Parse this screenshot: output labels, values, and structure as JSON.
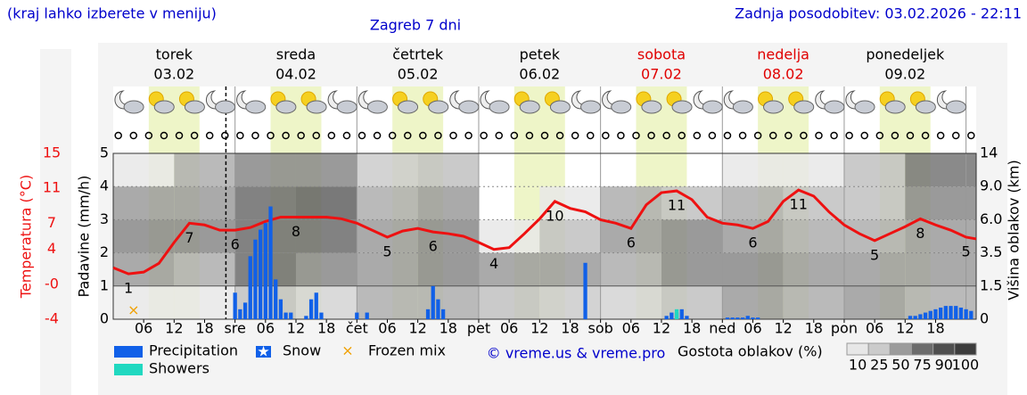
{
  "header": {
    "note": "(kraj lahko izberete v meniju)",
    "updated": "Zadnja posodobitev: 03.02.2026 - 22:11"
  },
  "chart_data": {
    "type": "meteogram",
    "title": "Zagreb 7 dni",
    "days": [
      {
        "name": "torek",
        "date": "03.02",
        "color": "#000000"
      },
      {
        "name": "sreda",
        "date": "04.02",
        "color": "#000000"
      },
      {
        "name": "četrtek",
        "date": "05.02",
        "color": "#000000"
      },
      {
        "name": "petek",
        "date": "06.02",
        "color": "#000000"
      },
      {
        "name": "sobota",
        "date": "07.02",
        "color": "#e00000"
      },
      {
        "name": "nedelja",
        "date": "08.02",
        "color": "#e00000"
      },
      {
        "name": "ponedeljek",
        "date": "09.02",
        "color": "#000000"
      }
    ],
    "xlim": [
      0,
      170
    ],
    "xticks": [
      {
        "value": 6,
        "label": "06"
      },
      12,
      18,
      {
        "value": 24,
        "label": "sre"
      },
      {
        "value": 30,
        "label": "06"
      },
      {
        "value": 36,
        "label": "12"
      },
      {
        "value": 42,
        "label": "18"
      },
      {
        "value": 48,
        "label": "čet"
      },
      {
        "value": 54,
        "label": "06"
      },
      {
        "value": 60,
        "label": "12"
      },
      {
        "value": 66,
        "label": "18"
      },
      {
        "value": 72,
        "label": "pet"
      },
      {
        "value": 78,
        "label": "06"
      },
      {
        "value": 84,
        "label": "12"
      },
      {
        "value": 90,
        "label": "18"
      },
      {
        "value": 96,
        "label": "sob"
      },
      {
        "value": 102,
        "label": "06"
      },
      {
        "value": 108,
        "label": "12"
      },
      {
        "value": 114,
        "label": "18"
      },
      {
        "value": 120,
        "label": "ned"
      },
      {
        "value": 126,
        "label": "06"
      },
      {
        "value": 132,
        "label": "12"
      },
      {
        "value": 138,
        "label": "18"
      },
      {
        "value": 144,
        "label": "pon"
      },
      {
        "value": 150,
        "label": "06"
      },
      {
        "value": 156,
        "label": "12"
      },
      {
        "value": 162,
        "label": "18"
      }
    ],
    "ylabel": "Padavine (mm/h)",
    "ylim": [
      0,
      5
    ],
    "yticks": [
      0,
      1,
      2,
      3,
      4,
      5
    ],
    "y2label": "Temperatura (°C)",
    "y2lim": [
      -4,
      15
    ],
    "y2ticks": [
      -4,
      {
        "value": 0,
        "label": "-0"
      },
      4,
      7,
      11,
      15
    ],
    "y3label": "Višina oblakov (km)",
    "y3ticks": [
      0,
      1.5,
      3.5,
      {
        "value": 6,
        "label": "6.0"
      },
      {
        "value": 9,
        "label": "9.0"
      },
      14
    ],
    "grid": true,
    "series": [
      {
        "color": "#ee1111",
        "axis": "y2",
        "x": [
          0,
          3,
          6,
          9,
          12,
          15,
          18,
          21,
          24,
          27,
          30,
          33,
          36,
          39,
          42,
          45,
          48,
          51,
          54,
          57,
          60,
          63,
          66,
          69,
          72,
          75,
          78,
          81,
          84,
          87,
          90,
          93,
          96,
          99,
          102,
          105,
          108,
          111,
          114,
          117,
          120,
          123,
          126,
          129,
          132,
          135,
          138,
          141,
          144,
          147,
          150,
          153,
          156,
          159,
          162,
          165,
          168,
          170
        ],
        "values": [
          1.9,
          1.2,
          1.4,
          2.4,
          4.8,
          7.0,
          6.8,
          6.2,
          6.2,
          6.5,
          7.2,
          7.7,
          7.7,
          7.7,
          7.7,
          7.5,
          7.0,
          6.2,
          5.4,
          6.1,
          6.4,
          6.0,
          5.8,
          5.5,
          4.8,
          4.0,
          4.2,
          5.8,
          7.5,
          9.5,
          8.7,
          8.3,
          7.4,
          7.0,
          6.4,
          9.1,
          10.5,
          10.7,
          9.7,
          7.7,
          7.0,
          6.8,
          6.4,
          7.2,
          9.5,
          10.8,
          10.1,
          8.3,
          6.8,
          5.8,
          5.0,
          5.8,
          6.6,
          7.5,
          6.8,
          6.2,
          5.4,
          5.2
        ],
        "value_labels": [
          null,
          "1",
          null,
          null,
          null,
          "7",
          null,
          null,
          "6",
          null,
          null,
          null,
          "8",
          null,
          null,
          null,
          null,
          null,
          "5",
          null,
          null,
          "6",
          null,
          null,
          null,
          "4",
          null,
          null,
          null,
          "10",
          null,
          null,
          null,
          null,
          "6",
          null,
          null,
          "11",
          null,
          null,
          null,
          null,
          "6",
          null,
          null,
          "11",
          null,
          null,
          null,
          null,
          "5",
          null,
          null,
          "8",
          null,
          null,
          "5",
          null
        ]
      },
      {
        "name": "Precipitation",
        "color": "#1060e8",
        "x": [
          24,
          25,
          26,
          27,
          28,
          29,
          30,
          31,
          32,
          33,
          34,
          35,
          38,
          39,
          40,
          41,
          48,
          50,
          62,
          63,
          64,
          65,
          93,
          109,
          110,
          111,
          112,
          113,
          121,
          122,
          123,
          124,
          125,
          126,
          127,
          157,
          158,
          159,
          160,
          161,
          162,
          163,
          164,
          165,
          166,
          167,
          168,
          169
        ],
        "values": [
          0.8,
          0.3,
          0.5,
          1.9,
          2.4,
          2.7,
          2.9,
          3.4,
          1.2,
          0.6,
          0.2,
          0.2,
          0.1,
          0.6,
          0.8,
          0.2,
          0.2,
          0.2,
          0.3,
          1.0,
          0.6,
          0.3,
          1.7,
          0.1,
          0.2,
          0.2,
          0.3,
          0.1,
          0.05,
          0.05,
          0.05,
          0.05,
          0.1,
          0.05,
          0.05,
          0.1,
          0.1,
          0.15,
          0.2,
          0.25,
          0.3,
          0.35,
          0.4,
          0.4,
          0.4,
          0.35,
          0.3,
          0.25
        ]
      },
      {
        "name": "Snow",
        "color": "#1060e8",
        "x": [],
        "values": []
      },
      {
        "name": "Frozen mix",
        "color": "#f0a000",
        "x": [
          4
        ],
        "values": [
          0.2
        ]
      },
      {
        "name": "Showers",
        "color": "#20d8c0",
        "x": [
          111
        ],
        "values": [
          0.3
        ]
      }
    ],
    "cloud_density": {
      "legend_title": "Gostota oblakov (%)",
      "legend_ticks": [
        10,
        25,
        50,
        75,
        90,
        100
      ],
      "x": [
        0,
        12,
        24,
        36,
        48,
        60,
        72,
        84,
        96,
        108,
        120,
        132,
        144,
        156
      ],
      "values": [
        [
          10,
          50,
          60,
          50,
          10
        ],
        [
          10,
          40,
          60,
          50,
          40
        ],
        [
          30,
          75,
          75,
          75,
          60
        ],
        [
          20,
          60,
          75,
          80,
          60
        ],
        [
          40,
          50,
          50,
          40,
          25
        ],
        [
          40,
          60,
          60,
          50,
          30
        ],
        [
          30,
          50,
          10,
          0,
          0
        ],
        [
          25,
          50,
          30,
          10,
          0
        ],
        [
          20,
          40,
          50,
          40,
          0
        ],
        [
          30,
          60,
          60,
          30,
          0
        ],
        [
          50,
          60,
          50,
          40,
          10
        ],
        [
          40,
          50,
          40,
          30,
          10
        ],
        [
          50,
          50,
          40,
          30,
          30
        ],
        [
          40,
          50,
          50,
          60,
          70
        ]
      ]
    },
    "credit": "© vreme.us & vreme.pro"
  }
}
